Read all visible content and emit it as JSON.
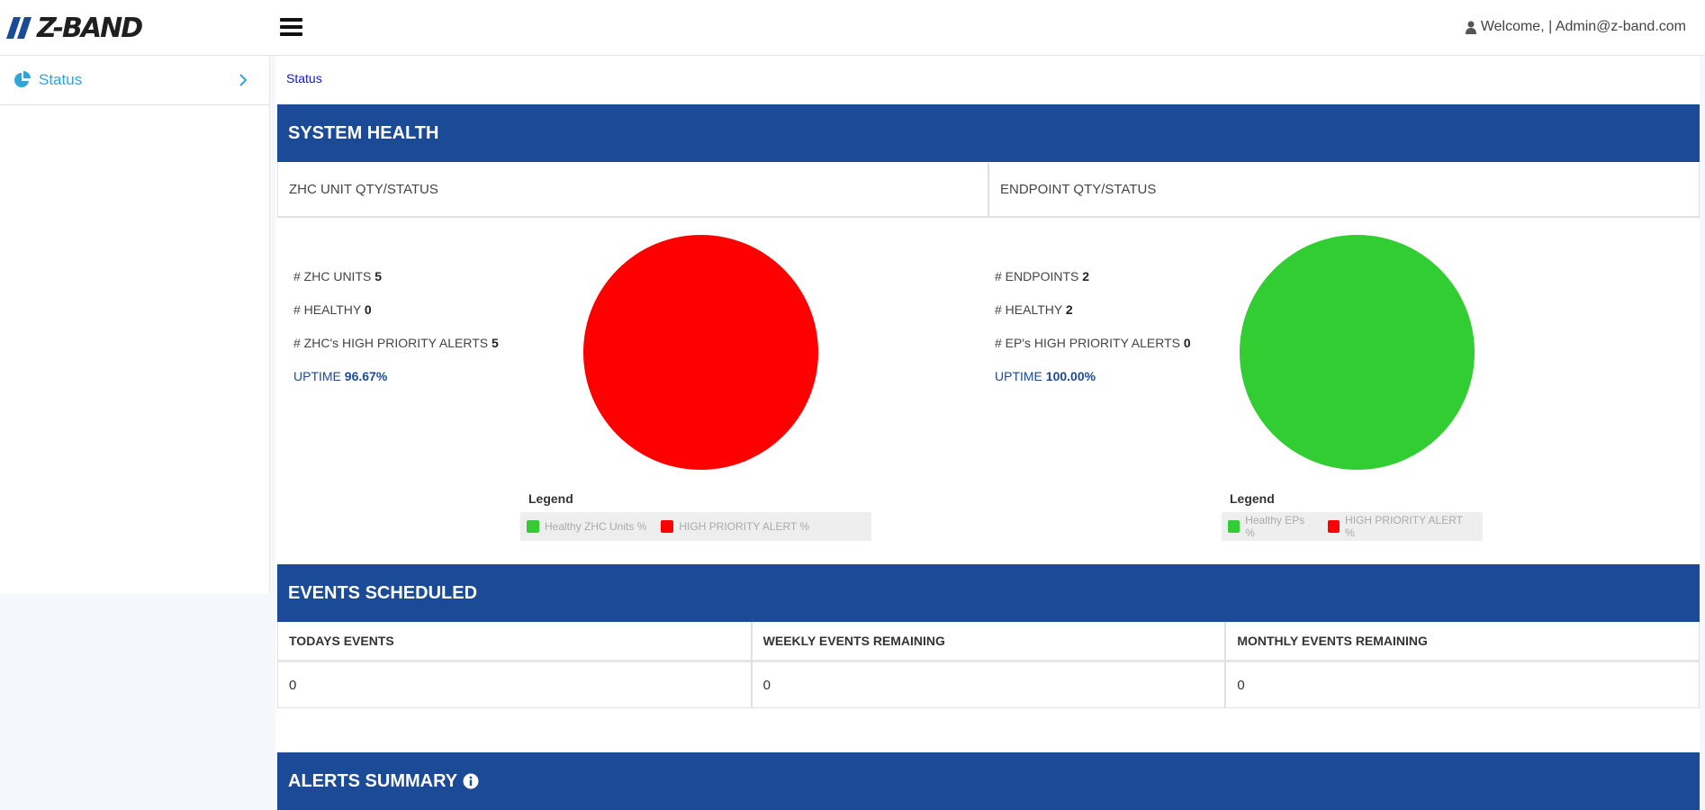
{
  "header": {
    "logo_text": "Z-BAND",
    "welcome_text": "Welcome, | Admin@z-band.com"
  },
  "sidebar": {
    "items": [
      {
        "label": "Status",
        "icon": "pie-chart-icon"
      }
    ]
  },
  "breadcrumb": "Status",
  "system_health": {
    "title": "SYSTEM HEALTH",
    "zhc_panel_label": "ZHC UNIT QTY/STATUS",
    "endpoint_panel_label": "ENDPOINT QTY/STATUS",
    "zhc": {
      "units_label": "# ZHC UNITS",
      "units_value": "5",
      "healthy_label": "# HEALTHY",
      "healthy_value": "0",
      "alerts_label": "# ZHC's HIGH PRIORITY ALERTS",
      "alerts_value": "5",
      "uptime_label": "UPTIME",
      "uptime_value": "96.67%",
      "legend_title": "Legend",
      "legend": [
        {
          "label": "Healthy ZHC Units %",
          "color": "#32cd32"
        },
        {
          "label": "HIGH PRIORITY ALERT %",
          "color": "#ff0000"
        }
      ]
    },
    "endpoints": {
      "endpoints_label": "# ENDPOINTS",
      "endpoints_value": "2",
      "healthy_label": "# HEALTHY",
      "healthy_value": "2",
      "alerts_label": "# EP's HIGH PRIORITY ALERTS",
      "alerts_value": "0",
      "uptime_label": "UPTIME",
      "uptime_value": "100.00%",
      "legend_title": "Legend",
      "legend": [
        {
          "label": "Healthy EPs %",
          "color": "#32cd32"
        },
        {
          "label": "HIGH PRIORITY ALERT %",
          "color": "#ff0000"
        }
      ]
    }
  },
  "chart_data": [
    {
      "type": "pie",
      "categories": [
        "Healthy ZHC Units %",
        "HIGH PRIORITY ALERT %"
      ],
      "values": [
        0,
        100
      ],
      "colors": [
        "#32cd32",
        "#ff0000"
      ],
      "legend": "below"
    },
    {
      "type": "pie",
      "categories": [
        "Healthy EPs %",
        "HIGH PRIORITY ALERT %"
      ],
      "values": [
        100,
        0
      ],
      "colors": [
        "#32cd32",
        "#ff0000"
      ],
      "legend": "below"
    }
  ],
  "events": {
    "title": "EVENTS SCHEDULED",
    "columns": [
      {
        "header": "TODAYS EVENTS",
        "value": "0"
      },
      {
        "header": "WEEKLY EVENTS REMAINING",
        "value": "0"
      },
      {
        "header": "MONTHLY EVENTS REMAINING",
        "value": "0"
      }
    ]
  },
  "alerts_summary": {
    "title": "ALERTS SUMMARY",
    "icon": "info-circle-icon"
  },
  "colors": {
    "brand_blue": "#1b4a96",
    "sidebar_accent": "#2ea6d8",
    "healthy": "#32cd32",
    "alert": "#ff0000"
  }
}
